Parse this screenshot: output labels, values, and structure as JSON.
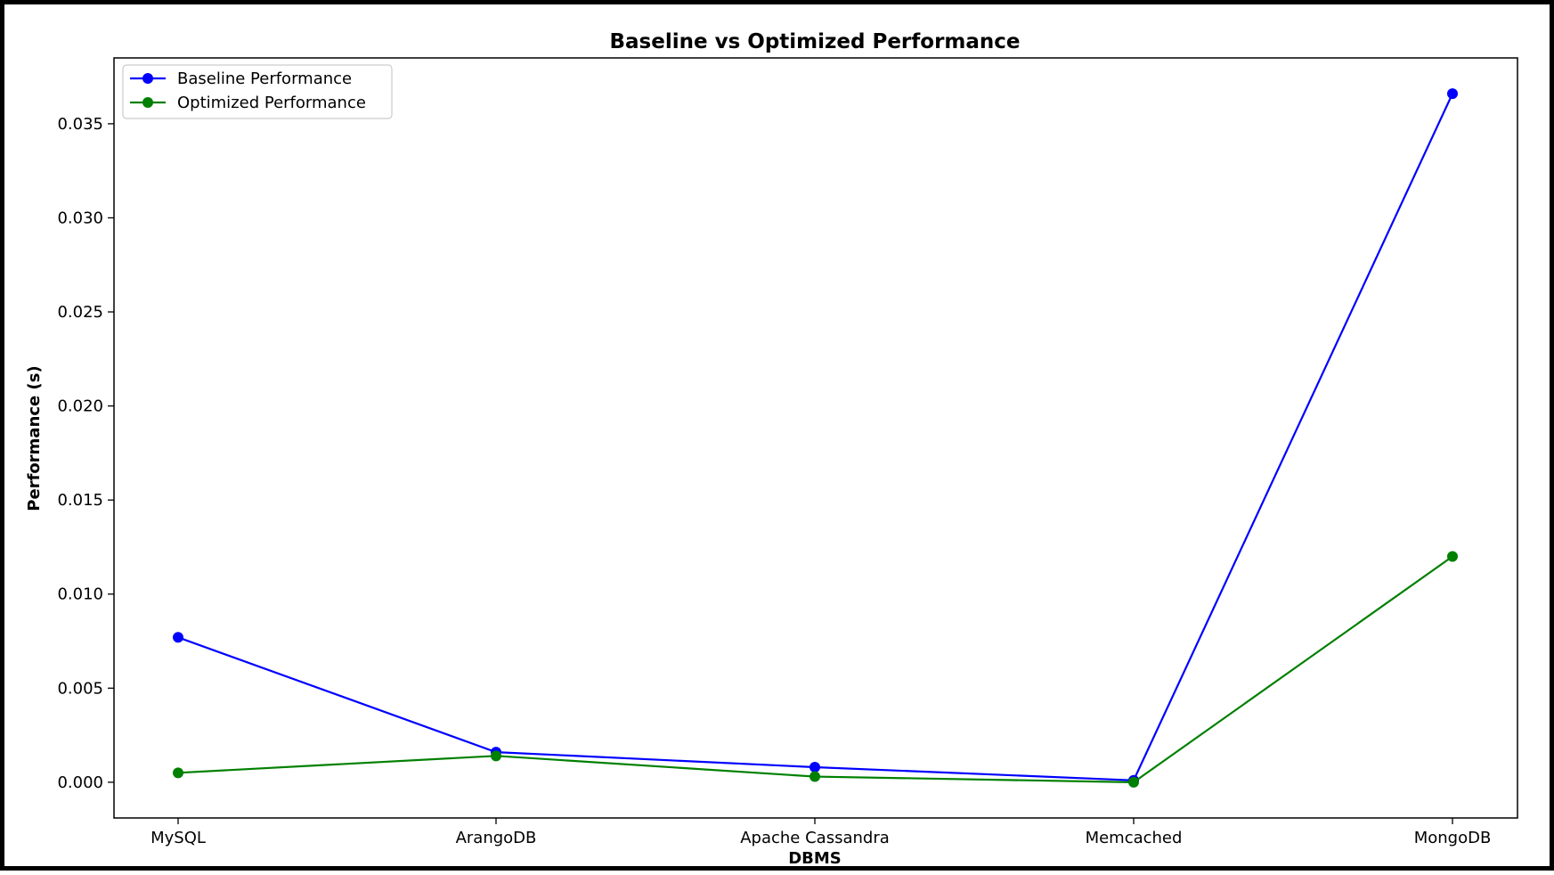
{
  "chart_data": {
    "type": "line",
    "title": "Baseline vs Optimized Performance",
    "xlabel": "DBMS",
    "ylabel": "Performance (s)",
    "categories": [
      "MySQL",
      "ArangoDB",
      "Apache Cassandra",
      "Memcached",
      "MongoDB"
    ],
    "ylim": [
      -0.0019,
      0.0385
    ],
    "yticks": [
      0.0,
      0.005,
      0.01,
      0.015,
      0.02,
      0.025,
      0.03,
      0.035
    ],
    "ytick_labels": [
      "0.000",
      "0.005",
      "0.010",
      "0.015",
      "0.020",
      "0.025",
      "0.030",
      "0.035"
    ],
    "grid": false,
    "legend_position": "top-left",
    "series": [
      {
        "name": "Baseline Performance",
        "color": "#0000ff",
        "marker": "circle",
        "values": [
          0.0077,
          0.0016,
          0.0008,
          0.0001,
          0.0366
        ]
      },
      {
        "name": "Optimized Performance",
        "color": "#008000",
        "marker": "circle",
        "values": [
          0.0005,
          0.0014,
          0.0003,
          0.0,
          0.012
        ]
      }
    ]
  }
}
